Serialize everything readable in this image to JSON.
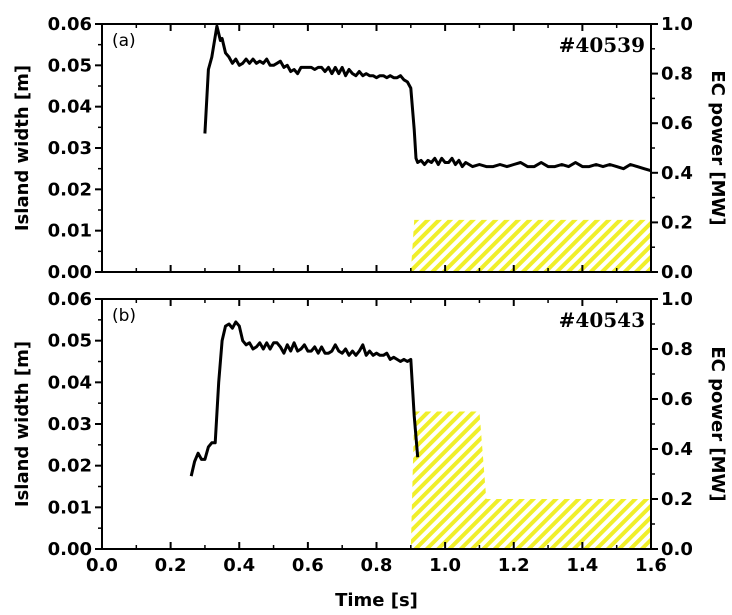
{
  "colors": {
    "line": "#000000",
    "hatch": "#f0ef2a",
    "frame": "#000000"
  },
  "chart_data": [
    {
      "type": "line",
      "panel_label": "(a)",
      "shot": "#40539",
      "xlim": [
        0.0,
        1.6
      ],
      "ylim": [
        0.0,
        0.06
      ],
      "ylim_right": [
        0.0,
        1.0
      ],
      "ylabel": "Island width [m]",
      "ylabel_right": "EC power [MW]",
      "y_ticks": [
        "0.00",
        "0.01",
        "0.02",
        "0.03",
        "0.04",
        "0.05",
        "0.06"
      ],
      "y_right_ticks": [
        "0.0",
        "0.2",
        "0.4",
        "0.6",
        "0.8",
        "1.0"
      ],
      "series": [
        {
          "x": [
            0.3,
            0.31,
            0.32,
            0.335,
            0.345,
            0.35,
            0.36,
            0.37,
            0.38,
            0.39,
            0.4,
            0.41,
            0.42,
            0.43,
            0.44,
            0.45,
            0.46,
            0.47,
            0.48,
            0.49,
            0.5,
            0.51,
            0.52,
            0.53,
            0.54,
            0.55,
            0.56,
            0.57,
            0.58,
            0.59,
            0.6,
            0.61,
            0.62,
            0.63,
            0.64,
            0.65,
            0.66,
            0.67,
            0.68,
            0.69,
            0.7,
            0.71,
            0.72,
            0.73,
            0.74,
            0.75,
            0.76,
            0.77,
            0.78,
            0.79,
            0.8,
            0.81,
            0.82,
            0.83,
            0.84,
            0.85,
            0.86,
            0.87,
            0.88,
            0.89,
            0.9,
            0.91,
            0.915,
            0.92,
            0.93,
            0.94,
            0.95,
            0.96,
            0.97,
            0.98,
            0.99,
            1.0,
            1.01,
            1.02,
            1.03,
            1.04,
            1.05,
            1.06,
            1.07,
            1.08,
            1.1,
            1.12,
            1.14,
            1.16,
            1.18,
            1.2,
            1.22,
            1.24,
            1.26,
            1.28,
            1.3,
            1.32,
            1.34,
            1.36,
            1.38,
            1.4,
            1.42,
            1.44,
            1.46,
            1.48,
            1.5,
            1.52,
            1.54,
            1.56,
            1.58,
            1.6
          ],
          "y": [
            0.0335,
            0.049,
            0.052,
            0.0595,
            0.056,
            0.0565,
            0.053,
            0.052,
            0.0505,
            0.0515,
            0.05,
            0.0505,
            0.0515,
            0.0505,
            0.0515,
            0.0505,
            0.051,
            0.0505,
            0.0515,
            0.05,
            0.05,
            0.0505,
            0.051,
            0.0495,
            0.05,
            0.0485,
            0.049,
            0.048,
            0.0495,
            0.0495,
            0.0495,
            0.0495,
            0.049,
            0.0495,
            0.0495,
            0.0485,
            0.0495,
            0.048,
            0.0495,
            0.048,
            0.0495,
            0.0475,
            0.049,
            0.048,
            0.0475,
            0.0485,
            0.0475,
            0.048,
            0.0475,
            0.0475,
            0.047,
            0.0475,
            0.0475,
            0.047,
            0.0475,
            0.047,
            0.047,
            0.0475,
            0.0465,
            0.046,
            0.0445,
            0.0345,
            0.0275,
            0.0265,
            0.027,
            0.026,
            0.027,
            0.0265,
            0.0275,
            0.026,
            0.0275,
            0.0265,
            0.0265,
            0.0275,
            0.026,
            0.027,
            0.0255,
            0.0265,
            0.026,
            0.0255,
            0.026,
            0.0255,
            0.0255,
            0.026,
            0.0255,
            0.026,
            0.0265,
            0.0255,
            0.0255,
            0.0265,
            0.0255,
            0.0255,
            0.026,
            0.0255,
            0.0265,
            0.0255,
            0.0255,
            0.026,
            0.0255,
            0.026,
            0.0255,
            0.025,
            0.026,
            0.0255,
            0.025,
            0.0245
          ]
        }
      ],
      "ec_power": {
        "x": [
          0.9,
          0.91,
          1.6
        ],
        "y": [
          0.0,
          0.21,
          0.21
        ]
      }
    },
    {
      "type": "line",
      "panel_label": "(b)",
      "shot": "#40543",
      "xlim": [
        0.0,
        1.6
      ],
      "ylim": [
        0.0,
        0.06
      ],
      "ylim_right": [
        0.0,
        1.0
      ],
      "xlabel": "Time [s]",
      "ylabel": "Island width [m]",
      "ylabel_right": "EC power [MW]",
      "x_ticks": [
        "0.0",
        "0.2",
        "0.4",
        "0.6",
        "0.8",
        "1.0",
        "1.2",
        "1.4",
        "1.6"
      ],
      "y_ticks": [
        "0.00",
        "0.01",
        "0.02",
        "0.03",
        "0.04",
        "0.05",
        "0.06"
      ],
      "y_right_ticks": [
        "0.0",
        "0.2",
        "0.4",
        "0.6",
        "0.8",
        "1.0"
      ],
      "series": [
        {
          "x": [
            0.26,
            0.27,
            0.28,
            0.29,
            0.3,
            0.31,
            0.32,
            0.33,
            0.34,
            0.35,
            0.36,
            0.37,
            0.38,
            0.39,
            0.4,
            0.41,
            0.42,
            0.43,
            0.44,
            0.45,
            0.46,
            0.47,
            0.48,
            0.49,
            0.5,
            0.51,
            0.52,
            0.53,
            0.54,
            0.55,
            0.56,
            0.57,
            0.58,
            0.59,
            0.6,
            0.61,
            0.62,
            0.63,
            0.64,
            0.65,
            0.66,
            0.67,
            0.68,
            0.69,
            0.7,
            0.71,
            0.72,
            0.73,
            0.74,
            0.75,
            0.76,
            0.77,
            0.78,
            0.79,
            0.8,
            0.81,
            0.82,
            0.83,
            0.84,
            0.85,
            0.86,
            0.87,
            0.88,
            0.89,
            0.9,
            0.91,
            0.92
          ],
          "y": [
            0.0175,
            0.021,
            0.023,
            0.0215,
            0.0215,
            0.0245,
            0.0255,
            0.0255,
            0.04,
            0.05,
            0.0535,
            0.054,
            0.053,
            0.0545,
            0.0535,
            0.05,
            0.049,
            0.0495,
            0.048,
            0.0485,
            0.0495,
            0.048,
            0.0495,
            0.048,
            0.0495,
            0.0495,
            0.0485,
            0.047,
            0.049,
            0.0475,
            0.0495,
            0.0475,
            0.048,
            0.049,
            0.0475,
            0.0475,
            0.0485,
            0.047,
            0.0485,
            0.047,
            0.047,
            0.0475,
            0.049,
            0.0475,
            0.047,
            0.048,
            0.0465,
            0.0475,
            0.0465,
            0.0475,
            0.049,
            0.0465,
            0.0475,
            0.0465,
            0.047,
            0.0465,
            0.0465,
            0.047,
            0.0455,
            0.046,
            0.0455,
            0.045,
            0.0455,
            0.045,
            0.0455,
            0.032,
            0.022
          ]
        }
      ],
      "ec_power": {
        "x": [
          0.9,
          0.91,
          1.1,
          1.12,
          1.6
        ],
        "y": [
          0.0,
          0.55,
          0.55,
          0.2,
          0.2
        ]
      }
    }
  ]
}
